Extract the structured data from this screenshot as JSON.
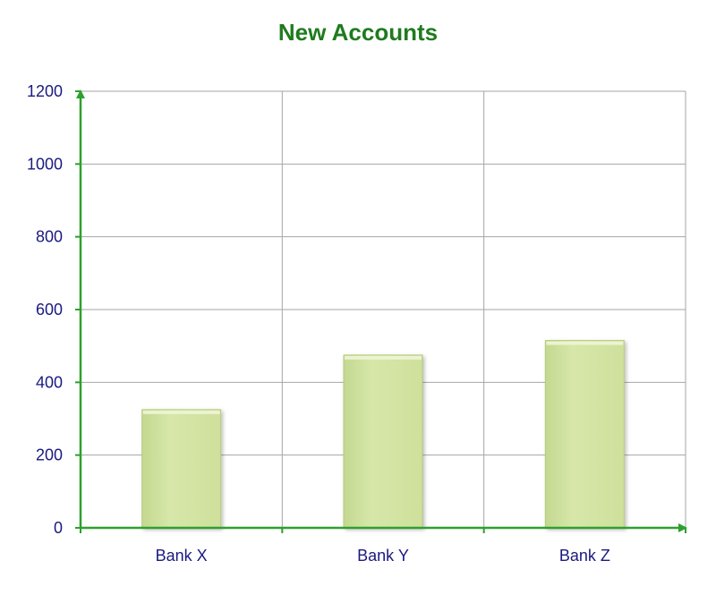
{
  "colors": {
    "title": "#1f7a1f",
    "axis": "#2ea02e",
    "text": "#1a1a80",
    "grid": "#a6a6a6",
    "bar_fill": "#d3e4a4",
    "bar_edge": "#b5cc7a"
  },
  "chart_data": {
    "type": "bar",
    "title": "New Accounts",
    "xlabel": "",
    "ylabel": "",
    "categories": [
      "Bank X",
      "Bank Y",
      "Bank Z"
    ],
    "values": [
      325,
      475,
      515
    ],
    "ylim": [
      0,
      1200
    ],
    "yticks": [
      0,
      200,
      400,
      600,
      800,
      1000,
      1200
    ],
    "ytick_labels": [
      "0",
      "200",
      "400",
      "600",
      "800",
      "1000",
      "1200"
    ],
    "grid": true,
    "legend": "none"
  }
}
